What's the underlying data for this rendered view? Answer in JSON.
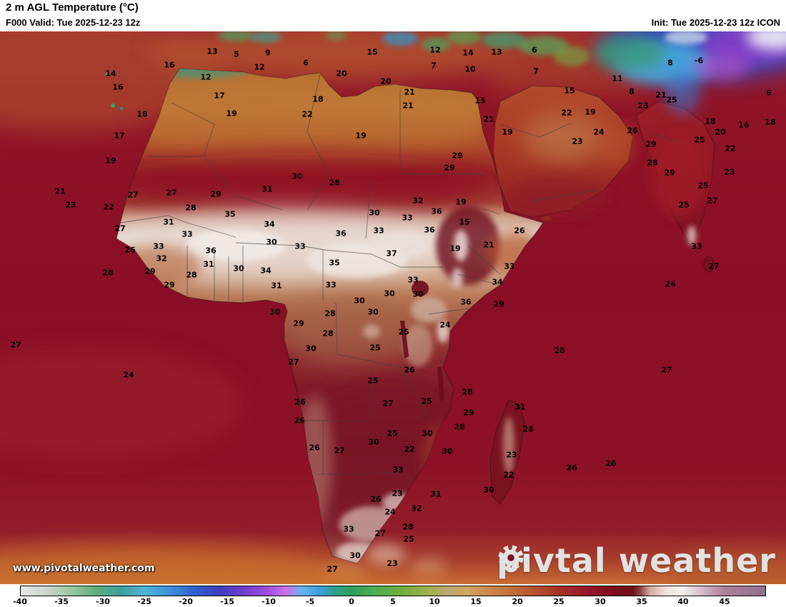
{
  "header": {
    "title": "2 m AGL Temperature (°C)",
    "valid": "F000 Valid: Tue 2025-12-23 12z",
    "init": "Init: Tue 2025-12-23 12z ICON"
  },
  "watermark": "www.pivotalweather.com",
  "logo": {
    "part1": "piv",
    "part2": "tal weather"
  },
  "colors": {
    "ocean_red": "#8a0e25",
    "sahara_orange": "#bd7436",
    "sahel_pale": "#e8dcd4",
    "cold_blue": "#2850c8",
    "logo_gray": "#e2e2e2"
  },
  "colorbar": {
    "min": -40,
    "max": 50,
    "ticks": [
      -40,
      -35,
      -30,
      -25,
      -20,
      -15,
      -10,
      -5,
      0,
      5,
      10,
      15,
      20,
      25,
      30,
      35,
      40,
      45
    ],
    "stops": [
      {
        "v": -40,
        "c": "#e6e6e6"
      },
      {
        "v": -37,
        "c": "#cdd6cd"
      },
      {
        "v": -34,
        "c": "#9cc9a6"
      },
      {
        "v": -31,
        "c": "#5fae7e"
      },
      {
        "v": -28,
        "c": "#3f9f9b"
      },
      {
        "v": -25,
        "c": "#4fb6d6"
      },
      {
        "v": -22,
        "c": "#3f8fdf"
      },
      {
        "v": -19,
        "c": "#2f5fce"
      },
      {
        "v": -16,
        "c": "#3f3fbe"
      },
      {
        "v": -13,
        "c": "#6f3fce"
      },
      {
        "v": -10,
        "c": "#9f4fdf"
      },
      {
        "v": -8,
        "c": "#cf6fe8"
      },
      {
        "v": -6,
        "c": "#5fb6ee"
      },
      {
        "v": -4,
        "c": "#3f9fde"
      },
      {
        "v": -2,
        "c": "#2f9f8f"
      },
      {
        "v": 0,
        "c": "#2f9f5f"
      },
      {
        "v": 3,
        "c": "#4fae4f"
      },
      {
        "v": 6,
        "c": "#6fae3f"
      },
      {
        "v": 9,
        "c": "#9fae4f"
      },
      {
        "v": 12,
        "c": "#bfa96f"
      },
      {
        "v": 14,
        "c": "#cfa55f"
      },
      {
        "v": 16,
        "c": "#cf8f4f"
      },
      {
        "v": 19,
        "c": "#c2713a"
      },
      {
        "v": 22,
        "c": "#b5542e"
      },
      {
        "v": 25,
        "c": "#a53226"
      },
      {
        "v": 28,
        "c": "#971c2a"
      },
      {
        "v": 30,
        "c": "#8a1126"
      },
      {
        "v": 32,
        "c": "#7a0f20"
      },
      {
        "v": 34,
        "c": "#6f0e1c"
      },
      {
        "v": 35,
        "c": "#8f4a4a"
      },
      {
        "v": 36,
        "c": "#cfa8a0"
      },
      {
        "v": 38,
        "c": "#efe2dc"
      },
      {
        "v": 40,
        "c": "#f5f0ec"
      },
      {
        "v": 42,
        "c": "#d8c2cc"
      },
      {
        "v": 45,
        "c": "#b08098"
      },
      {
        "v": 50,
        "c": "#907090"
      }
    ]
  },
  "map": {
    "labels": [
      [
        13,
        297,
        72
      ],
      [
        5,
        331,
        76
      ],
      [
        9,
        375,
        74
      ],
      [
        15,
        521,
        73
      ],
      [
        12,
        609,
        70
      ],
      [
        14,
        655,
        74
      ],
      [
        13,
        695,
        73
      ],
      [
        6,
        748,
        70
      ],
      [
        16,
        237,
        91
      ],
      [
        12,
        363,
        94
      ],
      [
        6,
        428,
        88
      ],
      [
        20,
        478,
        103
      ],
      [
        7,
        607,
        92
      ],
      [
        10,
        658,
        97
      ],
      [
        7,
        750,
        100
      ],
      [
        8,
        938,
        88
      ],
      [
        -6,
        978,
        85
      ],
      [
        14,
        155,
        103
      ],
      [
        12,
        288,
        108
      ],
      [
        20,
        540,
        114
      ],
      [
        11,
        864,
        110
      ],
      [
        16,
        165,
        122
      ],
      [
        21,
        573,
        129
      ],
      [
        15,
        797,
        127
      ],
      [
        8,
        884,
        128
      ],
      [
        6,
        1076,
        130
      ],
      [
        17,
        307,
        134
      ],
      [
        18,
        445,
        139
      ],
      [
        21,
        925,
        133
      ],
      [
        18,
        199,
        160
      ],
      [
        19,
        324,
        159
      ],
      [
        22,
        430,
        160
      ],
      [
        21,
        571,
        148
      ],
      [
        15,
        672,
        141
      ],
      [
        23,
        900,
        148
      ],
      [
        25,
        940,
        140
      ],
      [
        22,
        793,
        158
      ],
      [
        19,
        826,
        157
      ],
      [
        18,
        994,
        170
      ],
      [
        16,
        1041,
        175
      ],
      [
        17,
        167,
        190
      ],
      [
        19,
        505,
        190
      ],
      [
        21,
        684,
        167
      ],
      [
        19,
        710,
        185
      ],
      [
        26,
        885,
        183
      ],
      [
        24,
        838,
        185
      ],
      [
        23,
        808,
        198
      ],
      [
        25,
        979,
        196
      ],
      [
        20,
        1008,
        185
      ],
      [
        22,
        1022,
        208
      ],
      [
        18,
        1078,
        171
      ],
      [
        19,
        155,
        225
      ],
      [
        29,
        640,
        218
      ],
      [
        29,
        911,
        202
      ],
      [
        28,
        913,
        228
      ],
      [
        29,
        937,
        242
      ],
      [
        23,
        1021,
        241
      ],
      [
        25,
        984,
        260
      ],
      [
        21,
        84,
        268
      ],
      [
        23,
        99,
        287
      ],
      [
        27,
        186,
        273
      ],
      [
        27,
        240,
        270
      ],
      [
        29,
        302,
        272
      ],
      [
        31,
        374,
        265
      ],
      [
        30,
        416,
        247
      ],
      [
        28,
        468,
        256
      ],
      [
        29,
        629,
        235
      ],
      [
        32,
        585,
        281
      ],
      [
        36,
        611,
        296
      ],
      [
        19,
        645,
        283
      ],
      [
        27,
        997,
        281
      ],
      [
        25,
        957,
        287
      ],
      [
        22,
        152,
        290
      ],
      [
        28,
        267,
        291
      ],
      [
        35,
        322,
        300
      ],
      [
        30,
        524,
        298
      ],
      [
        33,
        570,
        305
      ],
      [
        15,
        650,
        311
      ],
      [
        26,
        727,
        323
      ],
      [
        31,
        236,
        311
      ],
      [
        33,
        262,
        328
      ],
      [
        34,
        377,
        314
      ],
      [
        36,
        477,
        327
      ],
      [
        36,
        601,
        322
      ],
      [
        33,
        975,
        345
      ],
      [
        27,
        168,
        320
      ],
      [
        33,
        222,
        345
      ],
      [
        36,
        295,
        351
      ],
      [
        30,
        380,
        339
      ],
      [
        33,
        420,
        345
      ],
      [
        33,
        530,
        323
      ],
      [
        19,
        637,
        348
      ],
      [
        21,
        684,
        343
      ],
      [
        26,
        182,
        350
      ],
      [
        32,
        226,
        362
      ],
      [
        31,
        292,
        370
      ],
      [
        35,
        468,
        368
      ],
      [
        37,
        548,
        355
      ],
      [
        33,
        713,
        373
      ],
      [
        27,
        999,
        373
      ],
      [
        28,
        151,
        382
      ],
      [
        29,
        210,
        380
      ],
      [
        30,
        334,
        376
      ],
      [
        34,
        372,
        379
      ],
      [
        33,
        463,
        399
      ],
      [
        33,
        578,
        392
      ],
      [
        34,
        696,
        395
      ],
      [
        29,
        237,
        399
      ],
      [
        28,
        268,
        385
      ],
      [
        31,
        387,
        400
      ],
      [
        30,
        503,
        421
      ],
      [
        30,
        545,
        411
      ],
      [
        30,
        585,
        412
      ],
      [
        36,
        652,
        423
      ],
      [
        29,
        698,
        426
      ],
      [
        26,
        938,
        398
      ],
      [
        30,
        385,
        437
      ],
      [
        28,
        462,
        439
      ],
      [
        24,
        623,
        455
      ],
      [
        29,
        418,
        453
      ],
      [
        30,
        522,
        437
      ],
      [
        28,
        459,
        467
      ],
      [
        25,
        565,
        465
      ],
      [
        27,
        22,
        483
      ],
      [
        25,
        525,
        487
      ],
      [
        30,
        435,
        488
      ],
      [
        28,
        783,
        491
      ],
      [
        27,
        411,
        507
      ],
      [
        26,
        573,
        518
      ],
      [
        27,
        933,
        518
      ],
      [
        24,
        180,
        525
      ],
      [
        25,
        522,
        533
      ],
      [
        28,
        654,
        549
      ],
      [
        26,
        420,
        563
      ],
      [
        27,
        543,
        565
      ],
      [
        25,
        597,
        562
      ],
      [
        29,
        656,
        578
      ],
      [
        31,
        728,
        570
      ],
      [
        26,
        419,
        589
      ],
      [
        25,
        549,
        607
      ],
      [
        30,
        598,
        607
      ],
      [
        28,
        643,
        598
      ],
      [
        28,
        739,
        601
      ],
      [
        26,
        440,
        627
      ],
      [
        27,
        475,
        631
      ],
      [
        30,
        523,
        619
      ],
      [
        22,
        573,
        629
      ],
      [
        30,
        626,
        632
      ],
      [
        23,
        716,
        637
      ],
      [
        26,
        800,
        655
      ],
      [
        26,
        855,
        649
      ],
      [
        33,
        557,
        658
      ],
      [
        22,
        712,
        665
      ],
      [
        31,
        610,
        692
      ],
      [
        23,
        556,
        691
      ],
      [
        30,
        684,
        686
      ],
      [
        26,
        526,
        699
      ],
      [
        24,
        546,
        717
      ],
      [
        32,
        583,
        712
      ],
      [
        33,
        488,
        741
      ],
      [
        28,
        571,
        738
      ],
      [
        27,
        532,
        747
      ],
      [
        25,
        572,
        755
      ],
      [
        30,
        497,
        778
      ],
      [
        23,
        549,
        789
      ],
      [
        27,
        465,
        797
      ]
    ]
  }
}
